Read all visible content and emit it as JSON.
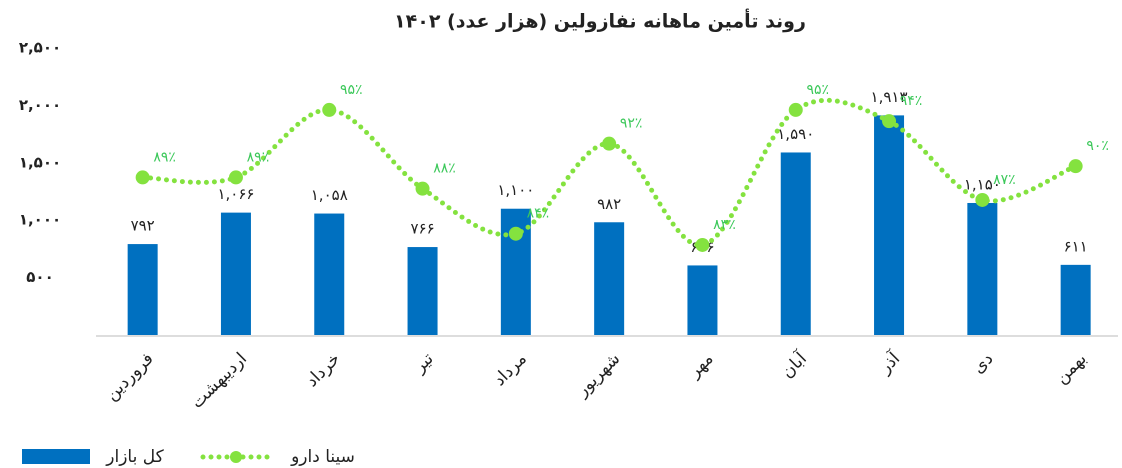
{
  "chart_data": {
    "type": "bar_line",
    "title": "روند تأمین ماهانه نفازولین (هزار عدد) ۱۴۰۲",
    "categories": [
      "فروردین",
      "اردیبهشت",
      "خرداد",
      "تیر",
      "مرداد",
      "شهریور",
      "مهر",
      "آبان",
      "آذر",
      "دی",
      "بهمن"
    ],
    "series": [
      {
        "name": "کل بازار",
        "type": "bar",
        "color": "#0070c0",
        "values": [
          792,
          1066,
          1058,
          766,
          1100,
          982,
          606,
          1590,
          1913,
          1150,
          611
        ],
        "value_labels": [
          "۷۹۲",
          "۱,۰۶۶",
          "۱,۰۵۸",
          "۷۶۶",
          "۱,۱۰۰",
          "۹۸۲",
          "۶۰۶",
          "۱,۵۹۰",
          "۱,۹۱۳",
          "۱,۱۵۰",
          "۶۱۱"
        ]
      },
      {
        "name": "سینا دارو",
        "type": "line",
        "axis": "y2",
        "color": "#84e23f",
        "label_color": "#3cc85a",
        "values": [
          89,
          89,
          95,
          88,
          84,
          92,
          83,
          95,
          94,
          87,
          90
        ],
        "value_labels": [
          "۸۹٪",
          "۸۹٪",
          "۹۵٪",
          "۸۸٪",
          "۸۴٪",
          "۹۲٪",
          "۸۳٪",
          "۹۵٪",
          "۹۴٪",
          "۸۷٪",
          "۹۰٪"
        ]
      }
    ],
    "ylim": [
      0,
      2500
    ],
    "yticks": [
      {
        "value": 500,
        "label": "۵۰۰"
      },
      {
        "value": 1000,
        "label": "۱,۰۰۰"
      },
      {
        "value": 1500,
        "label": "۱,۵۰۰"
      },
      {
        "value": 2000,
        "label": "۲,۰۰۰"
      },
      {
        "value": 2500,
        "label": "۲,۵۰۰"
      }
    ],
    "y2lim": [
      75,
      100.5
    ],
    "grid": false,
    "legend": "bottom-left"
  }
}
